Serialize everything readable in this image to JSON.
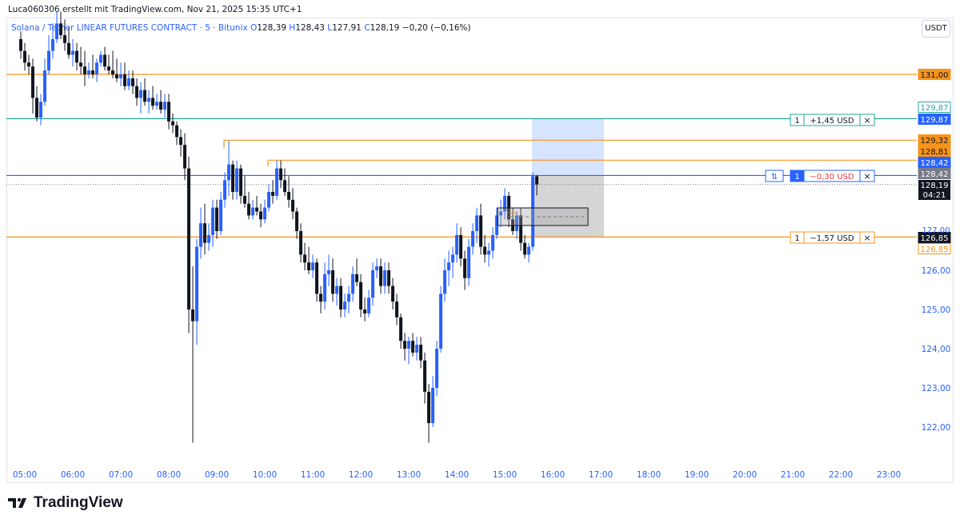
{
  "header": {
    "author_line": "Luca060306 erstellt mit TradingView.com, Nov 21, 2025 15:35 UTC+1",
    "symbol": "Solana / Tether LINEAR FUTURES CONTRACT · 5 · Bitunix",
    "ohlc": [
      {
        "label": "O",
        "value": "128,39"
      },
      {
        "label": "H",
        "value": "128,43"
      },
      {
        "label": "L",
        "value": "127,91"
      },
      {
        "label": "C",
        "value": "128,19"
      }
    ],
    "change": "−0,20 (−0,16%)",
    "currency_button": "USDT"
  },
  "brand": {
    "name": "TradingView"
  },
  "colors": {
    "up": "#2962ff",
    "down": "#131722",
    "orange": "#f7931a",
    "teal": "#26a69a",
    "blue": "#2962ff",
    "profit_zone": "#d6e4fd",
    "loss_zone": "#d5d5d5"
  },
  "chart_data": {
    "type": "candlestick",
    "timeframe": "5",
    "x_ticks": [
      "05:00",
      "06:00",
      "07:00",
      "08:00",
      "09:00",
      "10:00",
      "11:00",
      "12:00",
      "13:00",
      "14:00",
      "15:00",
      "16:00",
      "17:00",
      "18:00",
      "19:00",
      "20:00",
      "21:00",
      "22:00",
      "23:00"
    ],
    "y_ticks": [
      "126,00",
      "125,00",
      "124,00",
      "123,00",
      "122,00"
    ],
    "y_range": [
      121.5,
      131.5
    ],
    "last_price": "128,19",
    "countdown": "04:21",
    "horizontal_lines": [
      {
        "price": 131.0,
        "label": "131,00",
        "color": "#f7931a"
      },
      {
        "price": 129.87,
        "label": "129,87",
        "color": "#26a69a"
      },
      {
        "price": 129.32,
        "label": "129,32",
        "color": "#f7931a"
      },
      {
        "price": 128.81,
        "label": "128,81",
        "color": "#f7931a"
      },
      {
        "price": 128.42,
        "label": "128,42",
        "color": "#2962ff"
      },
      {
        "price": 126.85,
        "label": "126,85",
        "color": "#f7931a"
      }
    ],
    "orders": [
      {
        "qty": "1",
        "text": "+1,45 USD",
        "type": "take-profit"
      },
      {
        "qty": "1",
        "text": "−0,30 USD",
        "type": "position"
      },
      {
        "qty": "1",
        "text": "−1,57 USD",
        "type": "stop-loss"
      }
    ],
    "price_labels": {
      "tp_outline": "129,87",
      "tp_filled": "129,87",
      "orange_upper": "129,32",
      "orange_lower": "128,81",
      "entry_blue": "128,42",
      "entry_gray": "128,42",
      "sl_black": "126,85",
      "sl_outline": "126,85"
    },
    "candles": [
      {
        "t": "04:55",
        "o": 131.9,
        "h": 132.1,
        "l": 131.4,
        "c": 131.6
      },
      {
        "t": "05:00",
        "o": 131.6,
        "h": 131.8,
        "l": 131.1,
        "c": 131.3
      },
      {
        "t": "05:05",
        "o": 131.3,
        "h": 131.5,
        "l": 131.0,
        "c": 131.2
      },
      {
        "t": "05:10",
        "o": 131.2,
        "h": 131.4,
        "l": 130.0,
        "c": 130.4
      },
      {
        "t": "05:15",
        "o": 130.4,
        "h": 130.7,
        "l": 129.8,
        "c": 129.9
      },
      {
        "t": "05:20",
        "o": 129.9,
        "h": 130.5,
        "l": 129.7,
        "c": 130.3
      },
      {
        "t": "05:25",
        "o": 130.3,
        "h": 131.4,
        "l": 130.2,
        "c": 131.1
      },
      {
        "t": "05:30",
        "o": 131.1,
        "h": 132.0,
        "l": 131.0,
        "c": 131.6
      },
      {
        "t": "05:35",
        "o": 131.6,
        "h": 132.3,
        "l": 131.4,
        "c": 131.9
      },
      {
        "t": "05:40",
        "o": 131.9,
        "h": 132.6,
        "l": 131.8,
        "c": 132.3
      },
      {
        "t": "05:45",
        "o": 132.3,
        "h": 132.6,
        "l": 131.9,
        "c": 132.0
      },
      {
        "t": "05:50",
        "o": 132.0,
        "h": 132.4,
        "l": 131.6,
        "c": 131.8
      },
      {
        "t": "05:55",
        "o": 131.8,
        "h": 132.2,
        "l": 131.4,
        "c": 131.5
      },
      {
        "t": "06:00",
        "o": 131.5,
        "h": 131.9,
        "l": 131.2,
        "c": 131.6
      },
      {
        "t": "06:05",
        "o": 131.6,
        "h": 131.8,
        "l": 131.1,
        "c": 131.3
      },
      {
        "t": "06:10",
        "o": 131.3,
        "h": 131.7,
        "l": 131.0,
        "c": 131.2
      },
      {
        "t": "06:15",
        "o": 131.2,
        "h": 131.6,
        "l": 130.7,
        "c": 131.0
      },
      {
        "t": "06:20",
        "o": 131.0,
        "h": 131.3,
        "l": 130.9,
        "c": 131.1
      },
      {
        "t": "06:25",
        "o": 131.1,
        "h": 131.5,
        "l": 130.9,
        "c": 131.0
      },
      {
        "t": "06:30",
        "o": 131.0,
        "h": 131.4,
        "l": 130.8,
        "c": 131.3
      },
      {
        "t": "06:35",
        "o": 131.3,
        "h": 131.6,
        "l": 131.2,
        "c": 131.5
      },
      {
        "t": "06:40",
        "o": 131.5,
        "h": 131.7,
        "l": 131.1,
        "c": 131.2
      },
      {
        "t": "06:45",
        "o": 131.2,
        "h": 131.5,
        "l": 131.0,
        "c": 131.1
      },
      {
        "t": "06:50",
        "o": 131.1,
        "h": 131.6,
        "l": 130.9,
        "c": 131.0
      },
      {
        "t": "06:55",
        "o": 131.0,
        "h": 131.4,
        "l": 130.8,
        "c": 130.9
      },
      {
        "t": "07:00",
        "o": 130.9,
        "h": 131.3,
        "l": 130.7,
        "c": 131.0
      },
      {
        "t": "07:05",
        "o": 131.0,
        "h": 131.3,
        "l": 130.6,
        "c": 130.7
      },
      {
        "t": "07:10",
        "o": 130.7,
        "h": 131.1,
        "l": 130.6,
        "c": 130.9
      },
      {
        "t": "07:15",
        "o": 130.9,
        "h": 131.1,
        "l": 130.5,
        "c": 130.7
      },
      {
        "t": "07:20",
        "o": 130.7,
        "h": 130.9,
        "l": 130.2,
        "c": 130.4
      },
      {
        "t": "07:25",
        "o": 130.4,
        "h": 130.8,
        "l": 130.0,
        "c": 130.6
      },
      {
        "t": "07:30",
        "o": 130.6,
        "h": 130.9,
        "l": 130.2,
        "c": 130.3
      },
      {
        "t": "07:35",
        "o": 130.3,
        "h": 130.6,
        "l": 130.0,
        "c": 130.4
      },
      {
        "t": "07:40",
        "o": 130.4,
        "h": 130.7,
        "l": 130.1,
        "c": 130.2
      },
      {
        "t": "07:45",
        "o": 130.2,
        "h": 130.5,
        "l": 130.1,
        "c": 130.3
      },
      {
        "t": "07:50",
        "o": 130.3,
        "h": 130.6,
        "l": 130.0,
        "c": 130.1
      },
      {
        "t": "07:55",
        "o": 130.1,
        "h": 130.5,
        "l": 129.9,
        "c": 130.3
      },
      {
        "t": "08:00",
        "o": 130.3,
        "h": 130.5,
        "l": 129.6,
        "c": 129.8
      },
      {
        "t": "08:05",
        "o": 129.8,
        "h": 130.0,
        "l": 129.5,
        "c": 129.7
      },
      {
        "t": "08:10",
        "o": 129.7,
        "h": 129.8,
        "l": 129.2,
        "c": 129.4
      },
      {
        "t": "08:15",
        "o": 129.4,
        "h": 129.6,
        "l": 128.9,
        "c": 129.2
      },
      {
        "t": "08:20",
        "o": 129.2,
        "h": 129.5,
        "l": 128.3,
        "c": 128.6
      },
      {
        "t": "08:25",
        "o": 128.6,
        "h": 128.9,
        "l": 124.4,
        "c": 125.0
      },
      {
        "t": "08:30",
        "o": 125.0,
        "h": 126.1,
        "l": 121.6,
        "c": 124.7
      },
      {
        "t": "08:35",
        "o": 124.7,
        "h": 126.8,
        "l": 124.1,
        "c": 126.6
      },
      {
        "t": "08:40",
        "o": 126.6,
        "h": 127.6,
        "l": 126.3,
        "c": 127.2
      },
      {
        "t": "08:45",
        "o": 127.2,
        "h": 127.7,
        "l": 126.4,
        "c": 126.7
      },
      {
        "t": "08:50",
        "o": 126.7,
        "h": 127.2,
        "l": 126.5,
        "c": 126.9
      },
      {
        "t": "08:55",
        "o": 126.9,
        "h": 127.8,
        "l": 126.6,
        "c": 127.6
      },
      {
        "t": "09:00",
        "o": 127.6,
        "h": 127.8,
        "l": 126.8,
        "c": 127.0
      },
      {
        "t": "09:05",
        "o": 127.0,
        "h": 128.0,
        "l": 126.9,
        "c": 127.8
      },
      {
        "t": "09:10",
        "o": 127.8,
        "h": 128.5,
        "l": 127.6,
        "c": 128.3
      },
      {
        "t": "09:15",
        "o": 128.3,
        "h": 129.3,
        "l": 127.9,
        "c": 128.7
      },
      {
        "t": "09:20",
        "o": 128.7,
        "h": 128.8,
        "l": 127.8,
        "c": 128.0
      },
      {
        "t": "09:25",
        "o": 128.0,
        "h": 128.8,
        "l": 127.8,
        "c": 128.6
      },
      {
        "t": "09:30",
        "o": 128.6,
        "h": 128.7,
        "l": 127.7,
        "c": 127.9
      },
      {
        "t": "09:35",
        "o": 127.9,
        "h": 128.4,
        "l": 127.6,
        "c": 127.7
      },
      {
        "t": "09:40",
        "o": 127.7,
        "h": 128.0,
        "l": 127.3,
        "c": 127.4
      },
      {
        "t": "09:45",
        "o": 127.4,
        "h": 127.8,
        "l": 127.3,
        "c": 127.6
      },
      {
        "t": "09:50",
        "o": 127.6,
        "h": 127.9,
        "l": 127.4,
        "c": 127.5
      },
      {
        "t": "09:55",
        "o": 127.5,
        "h": 127.7,
        "l": 127.1,
        "c": 127.3
      },
      {
        "t": "10:00",
        "o": 127.3,
        "h": 127.8,
        "l": 127.2,
        "c": 127.6
      },
      {
        "t": "10:05",
        "o": 127.6,
        "h": 128.2,
        "l": 127.5,
        "c": 128.0
      },
      {
        "t": "10:10",
        "o": 128.0,
        "h": 128.3,
        "l": 127.7,
        "c": 127.9
      },
      {
        "t": "10:15",
        "o": 127.9,
        "h": 128.8,
        "l": 127.8,
        "c": 128.6
      },
      {
        "t": "10:20",
        "o": 128.6,
        "h": 128.8,
        "l": 128.1,
        "c": 128.3
      },
      {
        "t": "10:25",
        "o": 128.3,
        "h": 128.6,
        "l": 127.9,
        "c": 128.0
      },
      {
        "t": "10:30",
        "o": 128.0,
        "h": 128.4,
        "l": 127.6,
        "c": 127.8
      },
      {
        "t": "10:35",
        "o": 127.8,
        "h": 128.1,
        "l": 127.3,
        "c": 127.5
      },
      {
        "t": "10:40",
        "o": 127.5,
        "h": 127.6,
        "l": 126.8,
        "c": 127.0
      },
      {
        "t": "10:45",
        "o": 127.0,
        "h": 127.2,
        "l": 126.2,
        "c": 126.4
      },
      {
        "t": "10:50",
        "o": 126.4,
        "h": 126.7,
        "l": 126.0,
        "c": 126.2
      },
      {
        "t": "10:55",
        "o": 126.2,
        "h": 126.6,
        "l": 125.9,
        "c": 126.0
      },
      {
        "t": "11:00",
        "o": 126.0,
        "h": 126.4,
        "l": 125.8,
        "c": 126.2
      },
      {
        "t": "11:05",
        "o": 126.2,
        "h": 126.3,
        "l": 125.2,
        "c": 125.4
      },
      {
        "t": "11:10",
        "o": 125.4,
        "h": 125.6,
        "l": 124.9,
        "c": 125.2
      },
      {
        "t": "11:15",
        "o": 125.2,
        "h": 126.2,
        "l": 125.0,
        "c": 125.9
      },
      {
        "t": "11:20",
        "o": 125.9,
        "h": 126.4,
        "l": 125.6,
        "c": 126.0
      },
      {
        "t": "11:25",
        "o": 126.0,
        "h": 126.3,
        "l": 125.2,
        "c": 125.4
      },
      {
        "t": "11:30",
        "o": 125.4,
        "h": 125.8,
        "l": 125.1,
        "c": 125.6
      },
      {
        "t": "11:35",
        "o": 125.6,
        "h": 125.8,
        "l": 124.8,
        "c": 125.0
      },
      {
        "t": "11:40",
        "o": 125.0,
        "h": 125.4,
        "l": 124.8,
        "c": 125.2
      },
      {
        "t": "11:45",
        "o": 125.2,
        "h": 125.6,
        "l": 124.9,
        "c": 125.4
      },
      {
        "t": "11:50",
        "o": 125.4,
        "h": 126.1,
        "l": 125.2,
        "c": 125.9
      },
      {
        "t": "11:55",
        "o": 125.9,
        "h": 126.3,
        "l": 125.6,
        "c": 125.7
      },
      {
        "t": "12:00",
        "o": 125.7,
        "h": 125.9,
        "l": 124.8,
        "c": 125.0
      },
      {
        "t": "12:05",
        "o": 125.0,
        "h": 125.3,
        "l": 124.7,
        "c": 124.9
      },
      {
        "t": "12:10",
        "o": 124.9,
        "h": 125.5,
        "l": 124.8,
        "c": 125.3
      },
      {
        "t": "12:15",
        "o": 125.3,
        "h": 126.2,
        "l": 125.1,
        "c": 126.0
      },
      {
        "t": "12:20",
        "o": 126.0,
        "h": 126.3,
        "l": 125.8,
        "c": 126.1
      },
      {
        "t": "12:25",
        "o": 126.1,
        "h": 126.3,
        "l": 125.4,
        "c": 125.6
      },
      {
        "t": "12:30",
        "o": 125.6,
        "h": 126.2,
        "l": 125.4,
        "c": 126.0
      },
      {
        "t": "12:35",
        "o": 126.0,
        "h": 126.2,
        "l": 125.4,
        "c": 125.6
      },
      {
        "t": "12:40",
        "o": 125.6,
        "h": 125.8,
        "l": 125.0,
        "c": 125.2
      },
      {
        "t": "12:45",
        "o": 125.2,
        "h": 125.4,
        "l": 124.6,
        "c": 124.8
      },
      {
        "t": "12:50",
        "o": 124.8,
        "h": 124.9,
        "l": 124.0,
        "c": 124.2
      },
      {
        "t": "12:55",
        "o": 124.2,
        "h": 124.4,
        "l": 123.7,
        "c": 124.0
      },
      {
        "t": "13:00",
        "o": 124.0,
        "h": 124.3,
        "l": 123.6,
        "c": 124.2
      },
      {
        "t": "13:05",
        "o": 124.2,
        "h": 124.4,
        "l": 123.8,
        "c": 123.9
      },
      {
        "t": "13:10",
        "o": 123.9,
        "h": 124.3,
        "l": 123.7,
        "c": 124.1
      },
      {
        "t": "13:15",
        "o": 124.1,
        "h": 124.3,
        "l": 123.5,
        "c": 123.7
      },
      {
        "t": "13:20",
        "o": 123.7,
        "h": 123.9,
        "l": 122.6,
        "c": 122.9
      },
      {
        "t": "13:25",
        "o": 122.9,
        "h": 123.1,
        "l": 121.6,
        "c": 122.1
      },
      {
        "t": "13:30",
        "o": 122.1,
        "h": 123.3,
        "l": 122.0,
        "c": 123.0
      },
      {
        "t": "13:35",
        "o": 123.0,
        "h": 124.2,
        "l": 122.8,
        "c": 124.0
      },
      {
        "t": "13:40",
        "o": 124.0,
        "h": 125.6,
        "l": 123.9,
        "c": 125.4
      },
      {
        "t": "13:45",
        "o": 125.4,
        "h": 126.3,
        "l": 125.2,
        "c": 126.0
      },
      {
        "t": "13:50",
        "o": 126.0,
        "h": 126.5,
        "l": 125.6,
        "c": 126.2
      },
      {
        "t": "13:55",
        "o": 126.2,
        "h": 126.6,
        "l": 125.8,
        "c": 126.4
      },
      {
        "t": "14:00",
        "o": 126.4,
        "h": 127.2,
        "l": 126.2,
        "c": 126.9
      },
      {
        "t": "14:05",
        "o": 126.9,
        "h": 127.1,
        "l": 126.1,
        "c": 126.3
      },
      {
        "t": "14:10",
        "o": 126.3,
        "h": 126.5,
        "l": 125.5,
        "c": 125.8
      },
      {
        "t": "14:15",
        "o": 125.8,
        "h": 126.8,
        "l": 125.6,
        "c": 126.6
      },
      {
        "t": "14:20",
        "o": 126.6,
        "h": 127.2,
        "l": 126.4,
        "c": 127.0
      },
      {
        "t": "14:25",
        "o": 127.0,
        "h": 127.6,
        "l": 126.7,
        "c": 127.4
      },
      {
        "t": "14:30",
        "o": 127.4,
        "h": 127.7,
        "l": 126.4,
        "c": 126.6
      },
      {
        "t": "14:35",
        "o": 126.6,
        "h": 126.9,
        "l": 126.2,
        "c": 126.4
      },
      {
        "t": "14:40",
        "o": 126.4,
        "h": 126.7,
        "l": 126.1,
        "c": 126.5
      },
      {
        "t": "14:45",
        "o": 126.5,
        "h": 127.1,
        "l": 126.3,
        "c": 126.9
      },
      {
        "t": "14:50",
        "o": 126.9,
        "h": 127.6,
        "l": 126.8,
        "c": 127.4
      },
      {
        "t": "14:55",
        "o": 127.4,
        "h": 127.8,
        "l": 127.1,
        "c": 127.5
      },
      {
        "t": "15:00",
        "o": 127.5,
        "h": 128.1,
        "l": 127.3,
        "c": 127.9
      },
      {
        "t": "15:05",
        "o": 127.9,
        "h": 128.0,
        "l": 127.1,
        "c": 127.3
      },
      {
        "t": "15:10",
        "o": 127.3,
        "h": 127.6,
        "l": 126.9,
        "c": 127.0
      },
      {
        "t": "15:15",
        "o": 127.0,
        "h": 127.5,
        "l": 126.8,
        "c": 127.4
      },
      {
        "t": "15:20",
        "o": 127.4,
        "h": 127.6,
        "l": 126.5,
        "c": 126.7
      },
      {
        "t": "15:25",
        "o": 126.7,
        "h": 126.9,
        "l": 126.3,
        "c": 126.4
      },
      {
        "t": "15:30",
        "o": 126.4,
        "h": 126.7,
        "l": 126.2,
        "c": 126.6
      },
      {
        "t": "15:35",
        "o": 126.6,
        "h": 128.5,
        "l": 126.5,
        "c": 128.4
      },
      {
        "t": "15:40",
        "o": 128.4,
        "h": 128.43,
        "l": 127.91,
        "c": 128.19
      }
    ]
  }
}
